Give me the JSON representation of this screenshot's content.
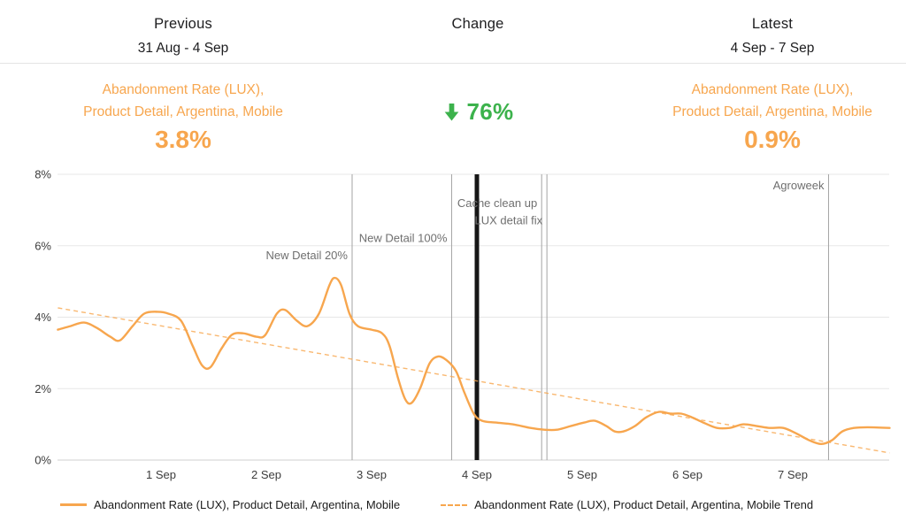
{
  "header": {
    "previous": {
      "title": "Previous",
      "range": "31 Aug - 4 Sep"
    },
    "change": {
      "title": "Change"
    },
    "latest": {
      "title": "Latest",
      "range": "4 Sep - 7 Sep"
    }
  },
  "metrics": {
    "previous": {
      "label_line1": "Abandonment Rate (LUX),",
      "label_line2": "Product Detail, Argentina, Mobile",
      "value": "3.8%"
    },
    "change": {
      "direction": "down",
      "value": "76%"
    },
    "latest": {
      "label_line1": "Abandonment Rate (LUX),",
      "label_line2": "Product Detail, Argentina, Mobile",
      "value": "0.9%"
    }
  },
  "colors": {
    "accent_orange": "#F7A64E",
    "change_green": "#3CB24C",
    "annotation_gray": "#6f6f6f",
    "annotation_line_gray": "#a3a3a3",
    "event_black": "#161616",
    "grid_gray": "#e7e7e7",
    "axis_text": "#3c3c3c"
  },
  "legend": [
    {
      "label": "Abandonment Rate (LUX), Product Detail, Argentina, Mobile",
      "style": "solid"
    },
    {
      "label": "Abandonment Rate (LUX), Product Detail, Argentina, Mobile Trend",
      "style": "dashed"
    }
  ],
  "chart_data": {
    "type": "line",
    "title": "",
    "xlabel": "",
    "ylabel": "",
    "ylim": [
      0,
      8
    ],
    "grid": true,
    "legend_position": "bottom",
    "x_unit": "days since 31 Aug 00:00",
    "x_range": [
      0.02,
      7.92
    ],
    "y_ticks": [
      {
        "value": 0,
        "label": "0%"
      },
      {
        "value": 2,
        "label": "2%"
      },
      {
        "value": 4,
        "label": "4%"
      },
      {
        "value": 6,
        "label": "6%"
      },
      {
        "value": 8,
        "label": "8%"
      }
    ],
    "x_ticks": [
      {
        "day": 1,
        "label": "1 Sep"
      },
      {
        "day": 2,
        "label": "2 Sep"
      },
      {
        "day": 3,
        "label": "3 Sep"
      },
      {
        "day": 4,
        "label": "4 Sep"
      },
      {
        "day": 5,
        "label": "5 Sep"
      },
      {
        "day": 6,
        "label": "6 Sep"
      },
      {
        "day": 7,
        "label": "7 Sep"
      }
    ],
    "series": [
      {
        "name": "Abandonment Rate (LUX), Product Detail, Argentina, Mobile",
        "style": "solid",
        "points": [
          [
            0.02,
            3.65
          ],
          [
            0.14,
            3.75
          ],
          [
            0.27,
            3.85
          ],
          [
            0.39,
            3.7
          ],
          [
            0.52,
            3.45
          ],
          [
            0.61,
            3.35
          ],
          [
            0.73,
            3.75
          ],
          [
            0.84,
            4.1
          ],
          [
            0.97,
            4.15
          ],
          [
            1.07,
            4.1
          ],
          [
            1.19,
            3.9
          ],
          [
            1.3,
            3.2
          ],
          [
            1.39,
            2.65
          ],
          [
            1.47,
            2.6
          ],
          [
            1.57,
            3.1
          ],
          [
            1.67,
            3.5
          ],
          [
            1.78,
            3.55
          ],
          [
            1.91,
            3.45
          ],
          [
            1.99,
            3.5
          ],
          [
            2.1,
            4.1
          ],
          [
            2.18,
            4.2
          ],
          [
            2.29,
            3.9
          ],
          [
            2.39,
            3.75
          ],
          [
            2.5,
            4.1
          ],
          [
            2.6,
            4.9
          ],
          [
            2.65,
            5.1
          ],
          [
            2.71,
            4.9
          ],
          [
            2.79,
            4.1
          ],
          [
            2.87,
            3.75
          ],
          [
            3.0,
            3.65
          ],
          [
            3.1,
            3.55
          ],
          [
            3.17,
            3.2
          ],
          [
            3.25,
            2.3
          ],
          [
            3.32,
            1.7
          ],
          [
            3.38,
            1.6
          ],
          [
            3.46,
            2.0
          ],
          [
            3.55,
            2.7
          ],
          [
            3.63,
            2.9
          ],
          [
            3.71,
            2.8
          ],
          [
            3.8,
            2.5
          ],
          [
            3.88,
            1.9
          ],
          [
            3.97,
            1.3
          ],
          [
            4.05,
            1.1
          ],
          [
            4.18,
            1.05
          ],
          [
            4.34,
            1.0
          ],
          [
            4.51,
            0.9
          ],
          [
            4.64,
            0.85
          ],
          [
            4.76,
            0.85
          ],
          [
            4.89,
            0.95
          ],
          [
            5.02,
            1.05
          ],
          [
            5.12,
            1.1
          ],
          [
            5.23,
            0.95
          ],
          [
            5.31,
            0.8
          ],
          [
            5.39,
            0.8
          ],
          [
            5.5,
            0.95
          ],
          [
            5.61,
            1.2
          ],
          [
            5.73,
            1.35
          ],
          [
            5.84,
            1.3
          ],
          [
            5.94,
            1.3
          ],
          [
            6.04,
            1.2
          ],
          [
            6.15,
            1.05
          ],
          [
            6.28,
            0.9
          ],
          [
            6.4,
            0.9
          ],
          [
            6.53,
            1.0
          ],
          [
            6.66,
            0.95
          ],
          [
            6.78,
            0.9
          ],
          [
            6.91,
            0.9
          ],
          [
            7.03,
            0.75
          ],
          [
            7.16,
            0.55
          ],
          [
            7.27,
            0.45
          ],
          [
            7.37,
            0.55
          ],
          [
            7.47,
            0.8
          ],
          [
            7.58,
            0.9
          ],
          [
            7.71,
            0.92
          ],
          [
            7.92,
            0.9
          ]
        ]
      },
      {
        "name": "Abandonment Rate (LUX), Product Detail, Argentina, Mobile Trend",
        "style": "dashed",
        "points": [
          [
            0.02,
            4.26
          ],
          [
            7.92,
            0.2
          ]
        ]
      }
    ],
    "annotations": [
      {
        "label": "Agroweek",
        "day": 7.34,
        "line": "thin",
        "row": 0
      },
      {
        "label": "Cache clean up",
        "day": 4.615,
        "line": "thin",
        "row": 1
      },
      {
        "label": "LUX detail fix",
        "day": 4.665,
        "line": "thin",
        "row": 2
      },
      {
        "label": "New Detail 100%",
        "day": 3.76,
        "line": "thin",
        "row": 3
      },
      {
        "label": "New Detail 20%",
        "day": 2.815,
        "line": "thin",
        "row": 4
      },
      {
        "label": "",
        "day": 4.0,
        "line": "thick",
        "row": -1
      }
    ]
  }
}
